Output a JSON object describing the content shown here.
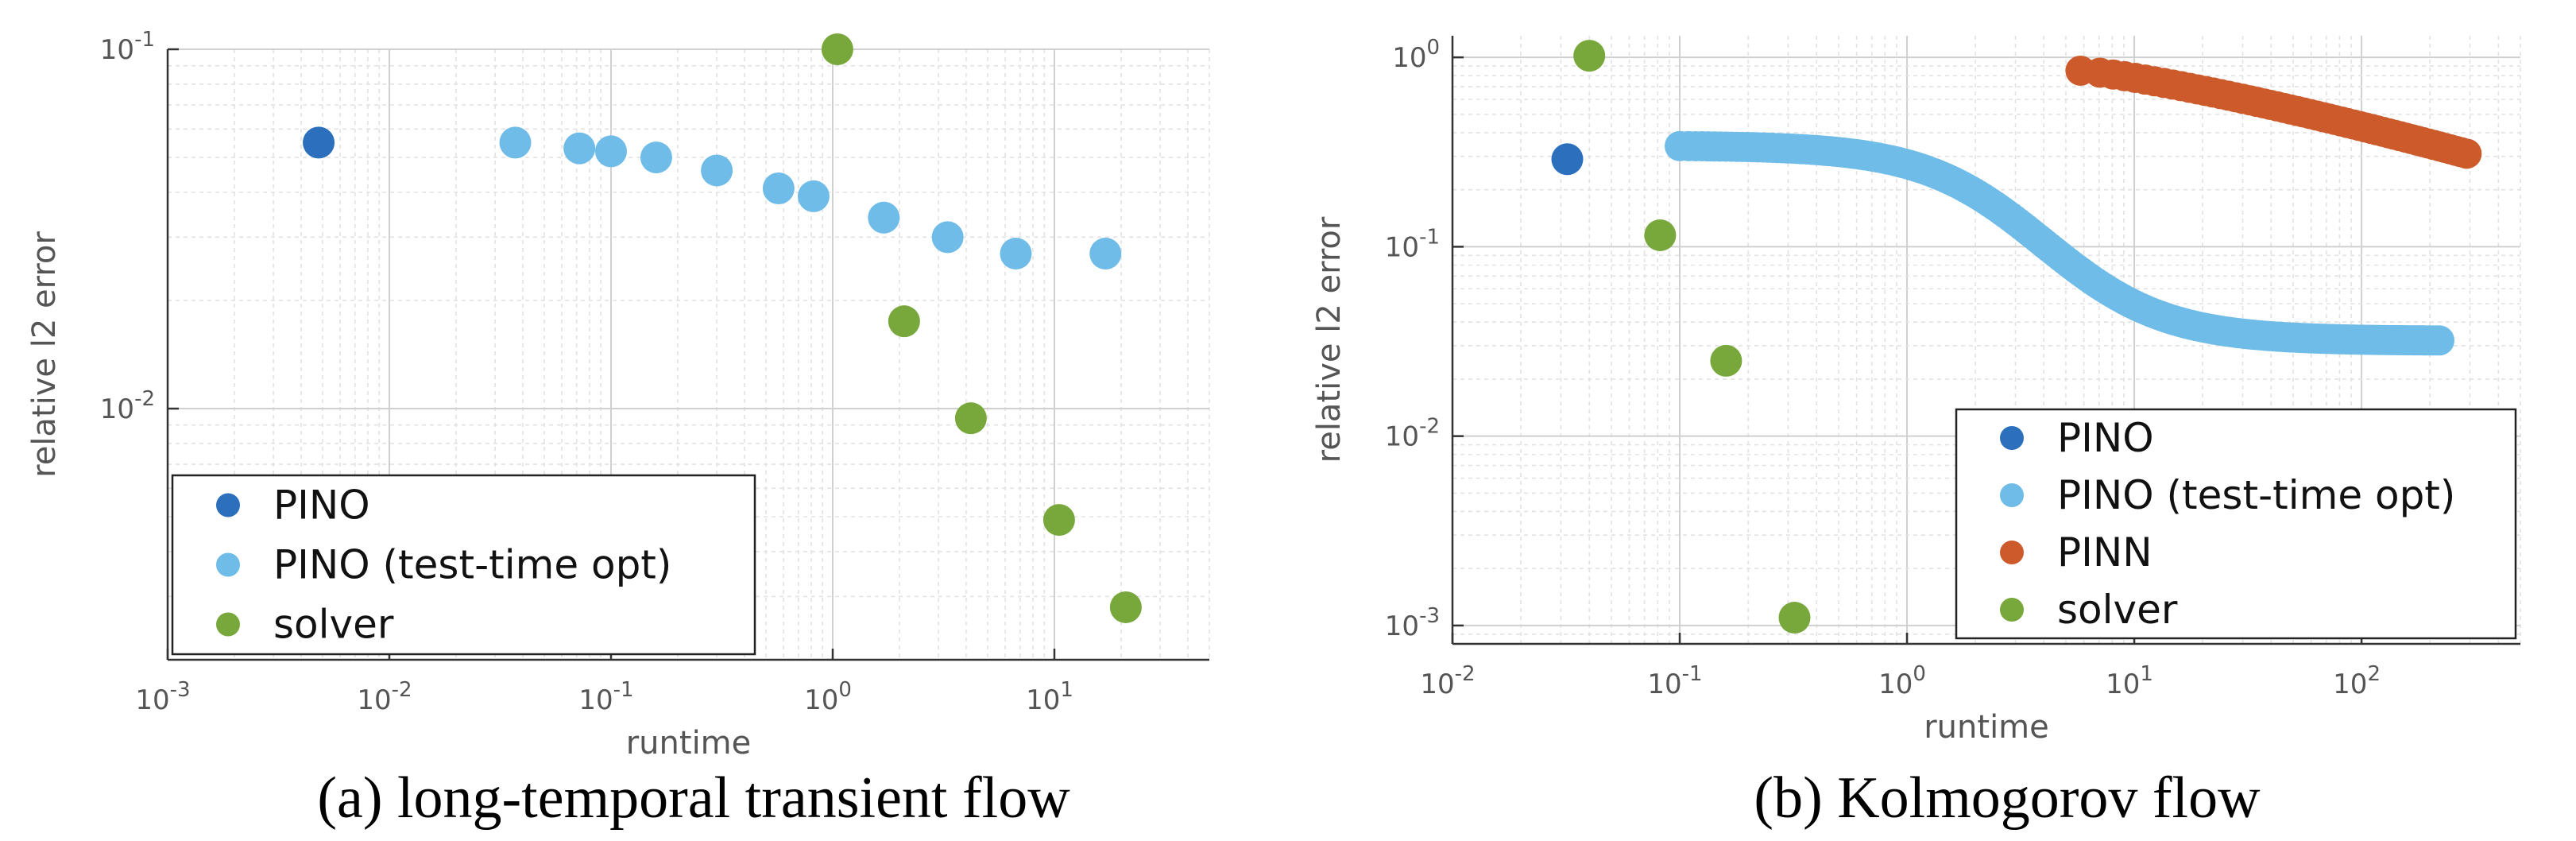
{
  "chart_data": [
    {
      "type": "scatter",
      "title": "",
      "caption": "(a) long-temporal transient flow",
      "xlabel": "runtime",
      "ylabel": "relative l2 error",
      "xscale": "log",
      "yscale": "log",
      "xlim": [
        0.001,
        50
      ],
      "ylim": [
        0.002,
        0.1
      ],
      "grid": true,
      "legend_position": "bottom-left",
      "x_ticks": [
        0.001,
        0.01,
        0.1,
        1,
        10
      ],
      "x_tick_labels": [
        {
          "base": "10",
          "exp": "-3"
        },
        {
          "base": "10",
          "exp": "-2"
        },
        {
          "base": "10",
          "exp": "-1"
        },
        {
          "base": "10",
          "exp": "0"
        },
        {
          "base": "10",
          "exp": "1"
        }
      ],
      "y_ticks": [
        0.01,
        0.1
      ],
      "y_tick_labels": [
        {
          "base": "10",
          "exp": "-2"
        },
        {
          "base": "10",
          "exp": "-1"
        }
      ],
      "series": [
        {
          "name": "PINO",
          "color": "#2b6fbd",
          "x": [
            0.0048
          ],
          "y": [
            0.055
          ]
        },
        {
          "name": "PINO (test-time opt)",
          "color": "#6fbce8",
          "x": [
            0.037,
            0.072,
            0.1,
            0.16,
            0.3,
            0.57,
            0.82,
            1.7,
            3.3,
            6.7,
            17
          ],
          "y": [
            0.055,
            0.053,
            0.052,
            0.05,
            0.046,
            0.041,
            0.039,
            0.034,
            0.03,
            0.027,
            0.027
          ]
        },
        {
          "name": "solver",
          "color": "#78a83c",
          "x": [
            1.05,
            2.1,
            4.2,
            10.5,
            21
          ],
          "y": [
            0.1,
            0.0175,
            0.0094,
            0.0049,
            0.0028
          ]
        }
      ]
    },
    {
      "type": "scatter",
      "title": "",
      "caption": "(b) Kolmogorov flow",
      "xlabel": "runtime",
      "ylabel": "relative l2 error",
      "xscale": "log",
      "yscale": "log",
      "xlim": [
        0.01,
        500
      ],
      "ylim": [
        0.0008,
        1.3
      ],
      "grid": true,
      "legend_position": "bottom-right",
      "x_ticks": [
        0.01,
        0.1,
        1,
        10,
        100
      ],
      "x_tick_labels": [
        {
          "base": "10",
          "exp": "-2"
        },
        {
          "base": "10",
          "exp": "-1"
        },
        {
          "base": "10",
          "exp": "0"
        },
        {
          "base": "10",
          "exp": "1"
        },
        {
          "base": "10",
          "exp": "2"
        }
      ],
      "y_ticks": [
        0.001,
        0.01,
        0.1,
        1
      ],
      "y_tick_labels": [
        {
          "base": "10",
          "exp": "-3"
        },
        {
          "base": "10",
          "exp": "-2"
        },
        {
          "base": "10",
          "exp": "-1"
        },
        {
          "base": "10",
          "exp": "0"
        }
      ],
      "series": [
        {
          "name": "PINO",
          "color": "#2b6fbd",
          "x": [
            0.032
          ],
          "y": [
            0.29
          ]
        },
        {
          "name": "PINO (test-time opt)",
          "color": "#6fbce8",
          "curve": {
            "x_start": 0.1,
            "x_end": 220,
            "y_start": 0.34,
            "y_end": 0.032,
            "x_mid": 4.0,
            "steepness": 1.7
          },
          "x": [],
          "y": []
        },
        {
          "name": "PINN",
          "color": "#cc5a2a",
          "curve": {
            "x_start": 5.8,
            "x_end": 290,
            "y_start": 0.85,
            "y_end": 0.31
          },
          "x": [],
          "y": []
        },
        {
          "name": "solver",
          "color": "#78a83c",
          "x": [
            0.04,
            0.082,
            0.16,
            0.32
          ],
          "y": [
            1.02,
            0.115,
            0.025,
            0.0011
          ]
        }
      ]
    }
  ]
}
